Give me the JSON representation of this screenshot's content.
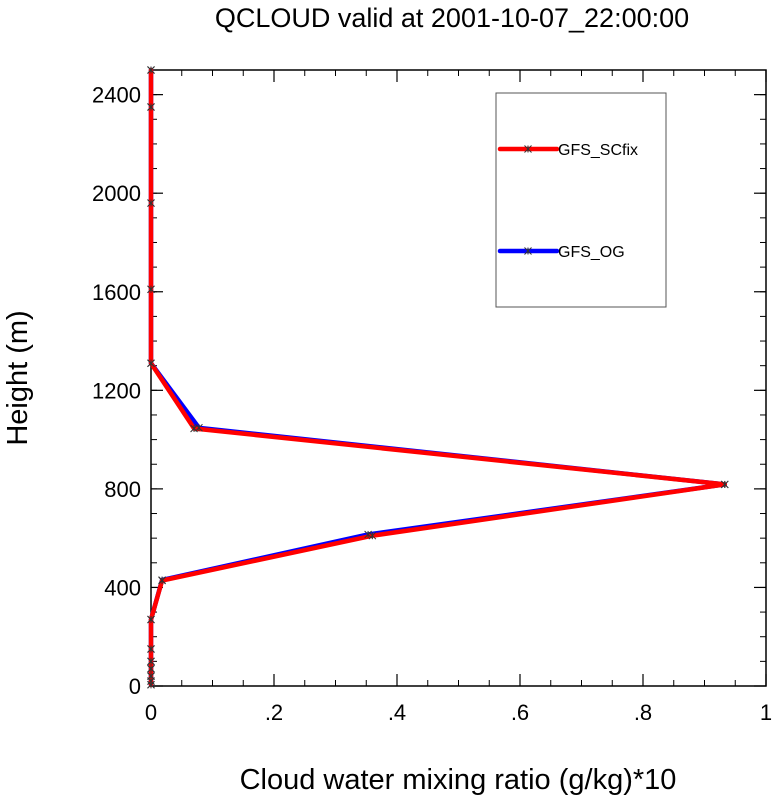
{
  "chart_data": {
    "type": "line",
    "title": "QCLOUD valid at 2001-10-07_22:00:00",
    "xlabel": "Cloud water mixing ratio (g/kg)*10",
    "ylabel": "Height (m)",
    "xlim": [
      0,
      1
    ],
    "ylim": [
      0,
      2500
    ],
    "x_ticks": [
      0,
      0.2,
      0.4,
      0.6,
      0.8,
      1
    ],
    "x_tick_labels": [
      "0",
      ".2",
      ".4",
      ".6",
      ".8",
      "1"
    ],
    "y_ticks": [
      0,
      400,
      800,
      1200,
      1600,
      2000,
      2400
    ],
    "y_tick_labels": [
      "0",
      "400",
      "800",
      "1200",
      "1600",
      "2000",
      "2400"
    ],
    "legend_position": "top-right",
    "grid": false,
    "series": [
      {
        "name": "GFS_OG",
        "color": "#0000ff",
        "points": [
          {
            "x": 0,
            "y": 5
          },
          {
            "x": 0,
            "y": 20
          },
          {
            "x": 0,
            "y": 40
          },
          {
            "x": 0,
            "y": 70
          },
          {
            "x": 0,
            "y": 100
          },
          {
            "x": 0,
            "y": 150
          },
          {
            "x": 0,
            "y": 270
          },
          {
            "x": 0.018,
            "y": 430
          },
          {
            "x": 0.353,
            "y": 615
          },
          {
            "x": 0.933,
            "y": 818
          },
          {
            "x": 0.078,
            "y": 1048
          },
          {
            "x": 0,
            "y": 1310
          },
          {
            "x": 0,
            "y": 1610
          },
          {
            "x": 0,
            "y": 1960
          },
          {
            "x": 0,
            "y": 2350
          },
          {
            "x": 0,
            "y": 2500
          }
        ]
      },
      {
        "name": "GFS_SCfix",
        "color": "#ff0000",
        "points": [
          {
            "x": 0,
            "y": 5
          },
          {
            "x": 0,
            "y": 20
          },
          {
            "x": 0,
            "y": 40
          },
          {
            "x": 0,
            "y": 70
          },
          {
            "x": 0,
            "y": 100
          },
          {
            "x": 0,
            "y": 150
          },
          {
            "x": 0,
            "y": 270
          },
          {
            "x": 0.018,
            "y": 428
          },
          {
            "x": 0.36,
            "y": 610
          },
          {
            "x": 0.933,
            "y": 818
          },
          {
            "x": 0.07,
            "y": 1045
          },
          {
            "x": 0,
            "y": 1310
          },
          {
            "x": 0,
            "y": 1610
          },
          {
            "x": 0,
            "y": 1960
          },
          {
            "x": 0,
            "y": 2350
          },
          {
            "x": 0,
            "y": 2500
          }
        ]
      }
    ],
    "legend_order": [
      "GFS_SCfix",
      "GFS_OG"
    ]
  }
}
